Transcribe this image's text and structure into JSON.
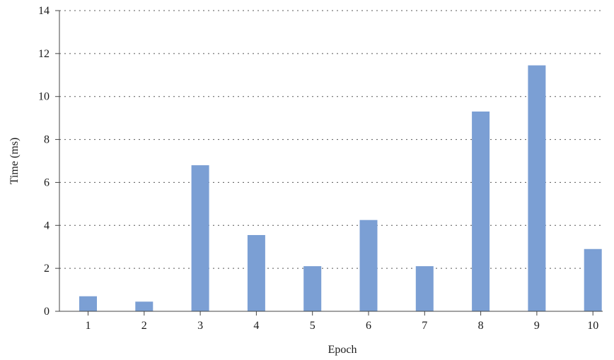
{
  "chart_data": {
    "type": "bar",
    "title": "",
    "xlabel": "Epoch",
    "ylabel": "Time (ms)",
    "categories": [
      "1",
      "2",
      "3",
      "4",
      "5",
      "6",
      "7",
      "8",
      "9",
      "10"
    ],
    "values": [
      0.7,
      0.45,
      6.8,
      3.55,
      2.1,
      4.25,
      2.1,
      9.3,
      11.45,
      2.9
    ],
    "ylim": [
      0,
      14
    ],
    "yticks": [
      0,
      2,
      4,
      6,
      8,
      10,
      12,
      14
    ],
    "grid": "horizontal dotted",
    "legend": "none",
    "bar_color": "#7b9fd4"
  }
}
